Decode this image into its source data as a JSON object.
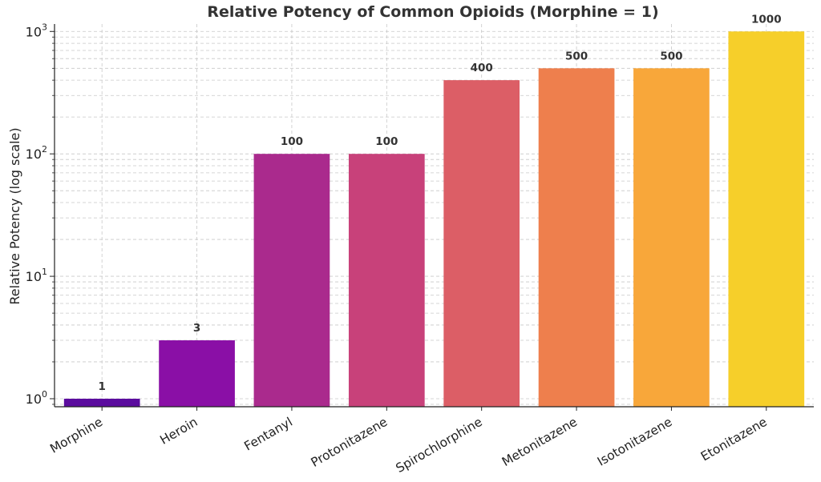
{
  "chart_data": {
    "type": "bar",
    "title": "Relative Potency of Common Opioids (Morphine = 1)",
    "xlabel": "",
    "ylabel": "Relative Potency (log scale)",
    "yscale": "log",
    "ylim": [
      0.86,
      1150
    ],
    "grid": true,
    "categories": [
      "Morphine",
      "Heroin",
      "Fentanyl",
      "Protonitazene",
      "Spirochlorphine",
      "Metonitazene",
      "Isotonitazene",
      "Etonitazene"
    ],
    "values": [
      1,
      3,
      100,
      100,
      400,
      500,
      500,
      1000
    ],
    "data_labels": [
      "1",
      "3",
      "100",
      "100",
      "400",
      "500",
      "500",
      "1000"
    ],
    "colors": [
      "#5b0c9e",
      "#8a0fa6",
      "#aa2a8d",
      "#c8417a",
      "#dc5e66",
      "#ee7f4d",
      "#f8a73a",
      "#f6cf2a"
    ],
    "yticks": [
      {
        "base": "10",
        "exp": "0",
        "value": 1
      },
      {
        "base": "10",
        "exp": "1",
        "value": 10
      },
      {
        "base": "10",
        "exp": "2",
        "value": 100
      },
      {
        "base": "10",
        "exp": "3",
        "value": 1000
      }
    ]
  }
}
